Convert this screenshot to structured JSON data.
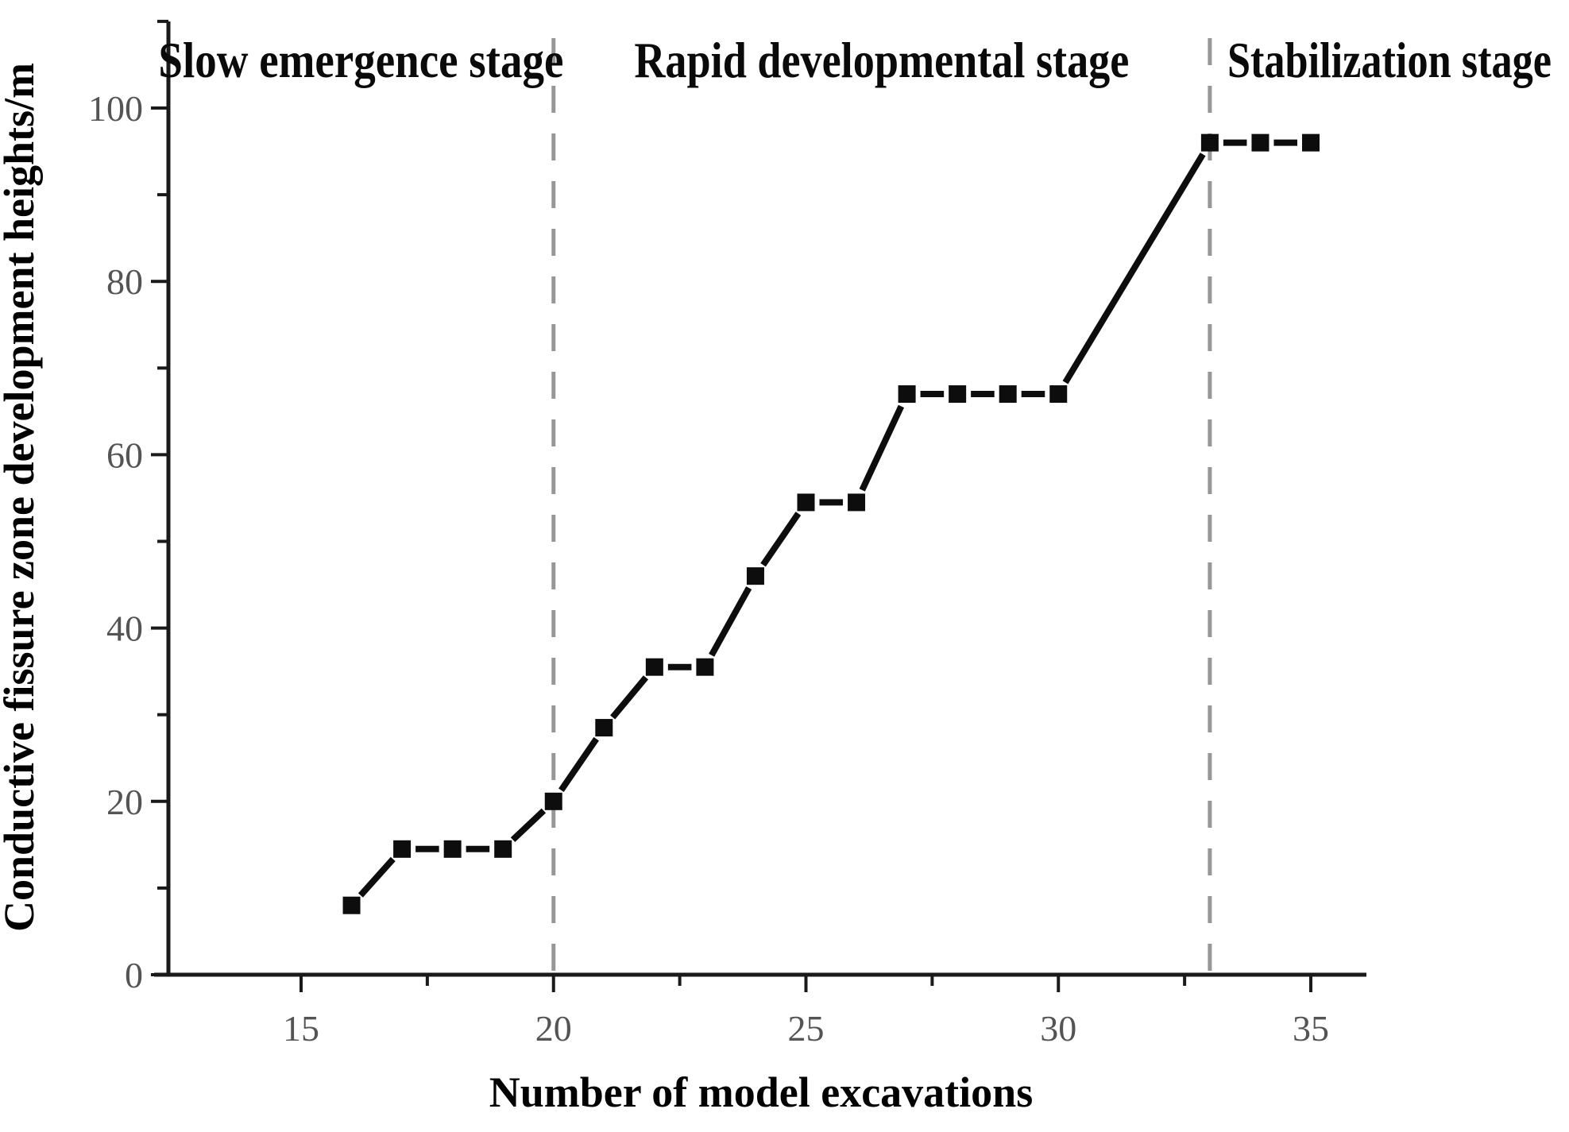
{
  "chart_data": {
    "type": "line",
    "title": "",
    "xlabel": "Number of model excavations",
    "ylabel": "Conductive fissure zone development heights/m",
    "series": [
      {
        "name": "Conductive fissure zone development height",
        "marker": "filled-square",
        "x": [
          16,
          17,
          18,
          19,
          20,
          21,
          22,
          23,
          24,
          25,
          26,
          27,
          28,
          29,
          30,
          33,
          34,
          35
        ],
        "y": [
          8,
          14.5,
          14.5,
          14.5,
          20,
          28.5,
          35.5,
          35.5,
          46,
          54.5,
          54.5,
          67,
          67,
          67,
          67,
          96,
          96,
          96
        ]
      }
    ],
    "xlim": [
      12.4,
      36.1
    ],
    "ylim": [
      0,
      110
    ],
    "x_major_ticks": {
      "values": [
        15,
        20,
        25,
        30,
        35
      ],
      "labels": [
        "15",
        "20",
        "25",
        "30",
        "35"
      ]
    },
    "x_minor_ticks": [
      17.5,
      22.5,
      27.5,
      32.5
    ],
    "y_major_ticks": {
      "values": [
        0,
        20,
        40,
        60,
        80,
        100
      ],
      "labels": [
        "0",
        "20",
        "40",
        "60",
        "80",
        "100"
      ]
    },
    "y_minor_ticks": [
      10,
      30,
      50,
      70,
      90,
      110
    ],
    "grid": false,
    "legend": "none",
    "stage_boundaries_x": [
      20,
      33
    ],
    "stages": [
      {
        "label": "Slow emergence stage",
        "x_range": [
          12.4,
          20
        ]
      },
      {
        "label": "Rapid developmental stage",
        "x_range": [
          20,
          33
        ]
      },
      {
        "label": "Stabilization stage",
        "x_range": [
          33,
          36.1
        ]
      }
    ],
    "colors": {
      "line": "#0d0d0d",
      "marker": "#0d0d0d",
      "axis": "#1a1a1a",
      "tick_label": "#545454",
      "stage_label": "#0a0a0a",
      "boundary_dash": "#979797",
      "background": "#ffffff"
    }
  }
}
